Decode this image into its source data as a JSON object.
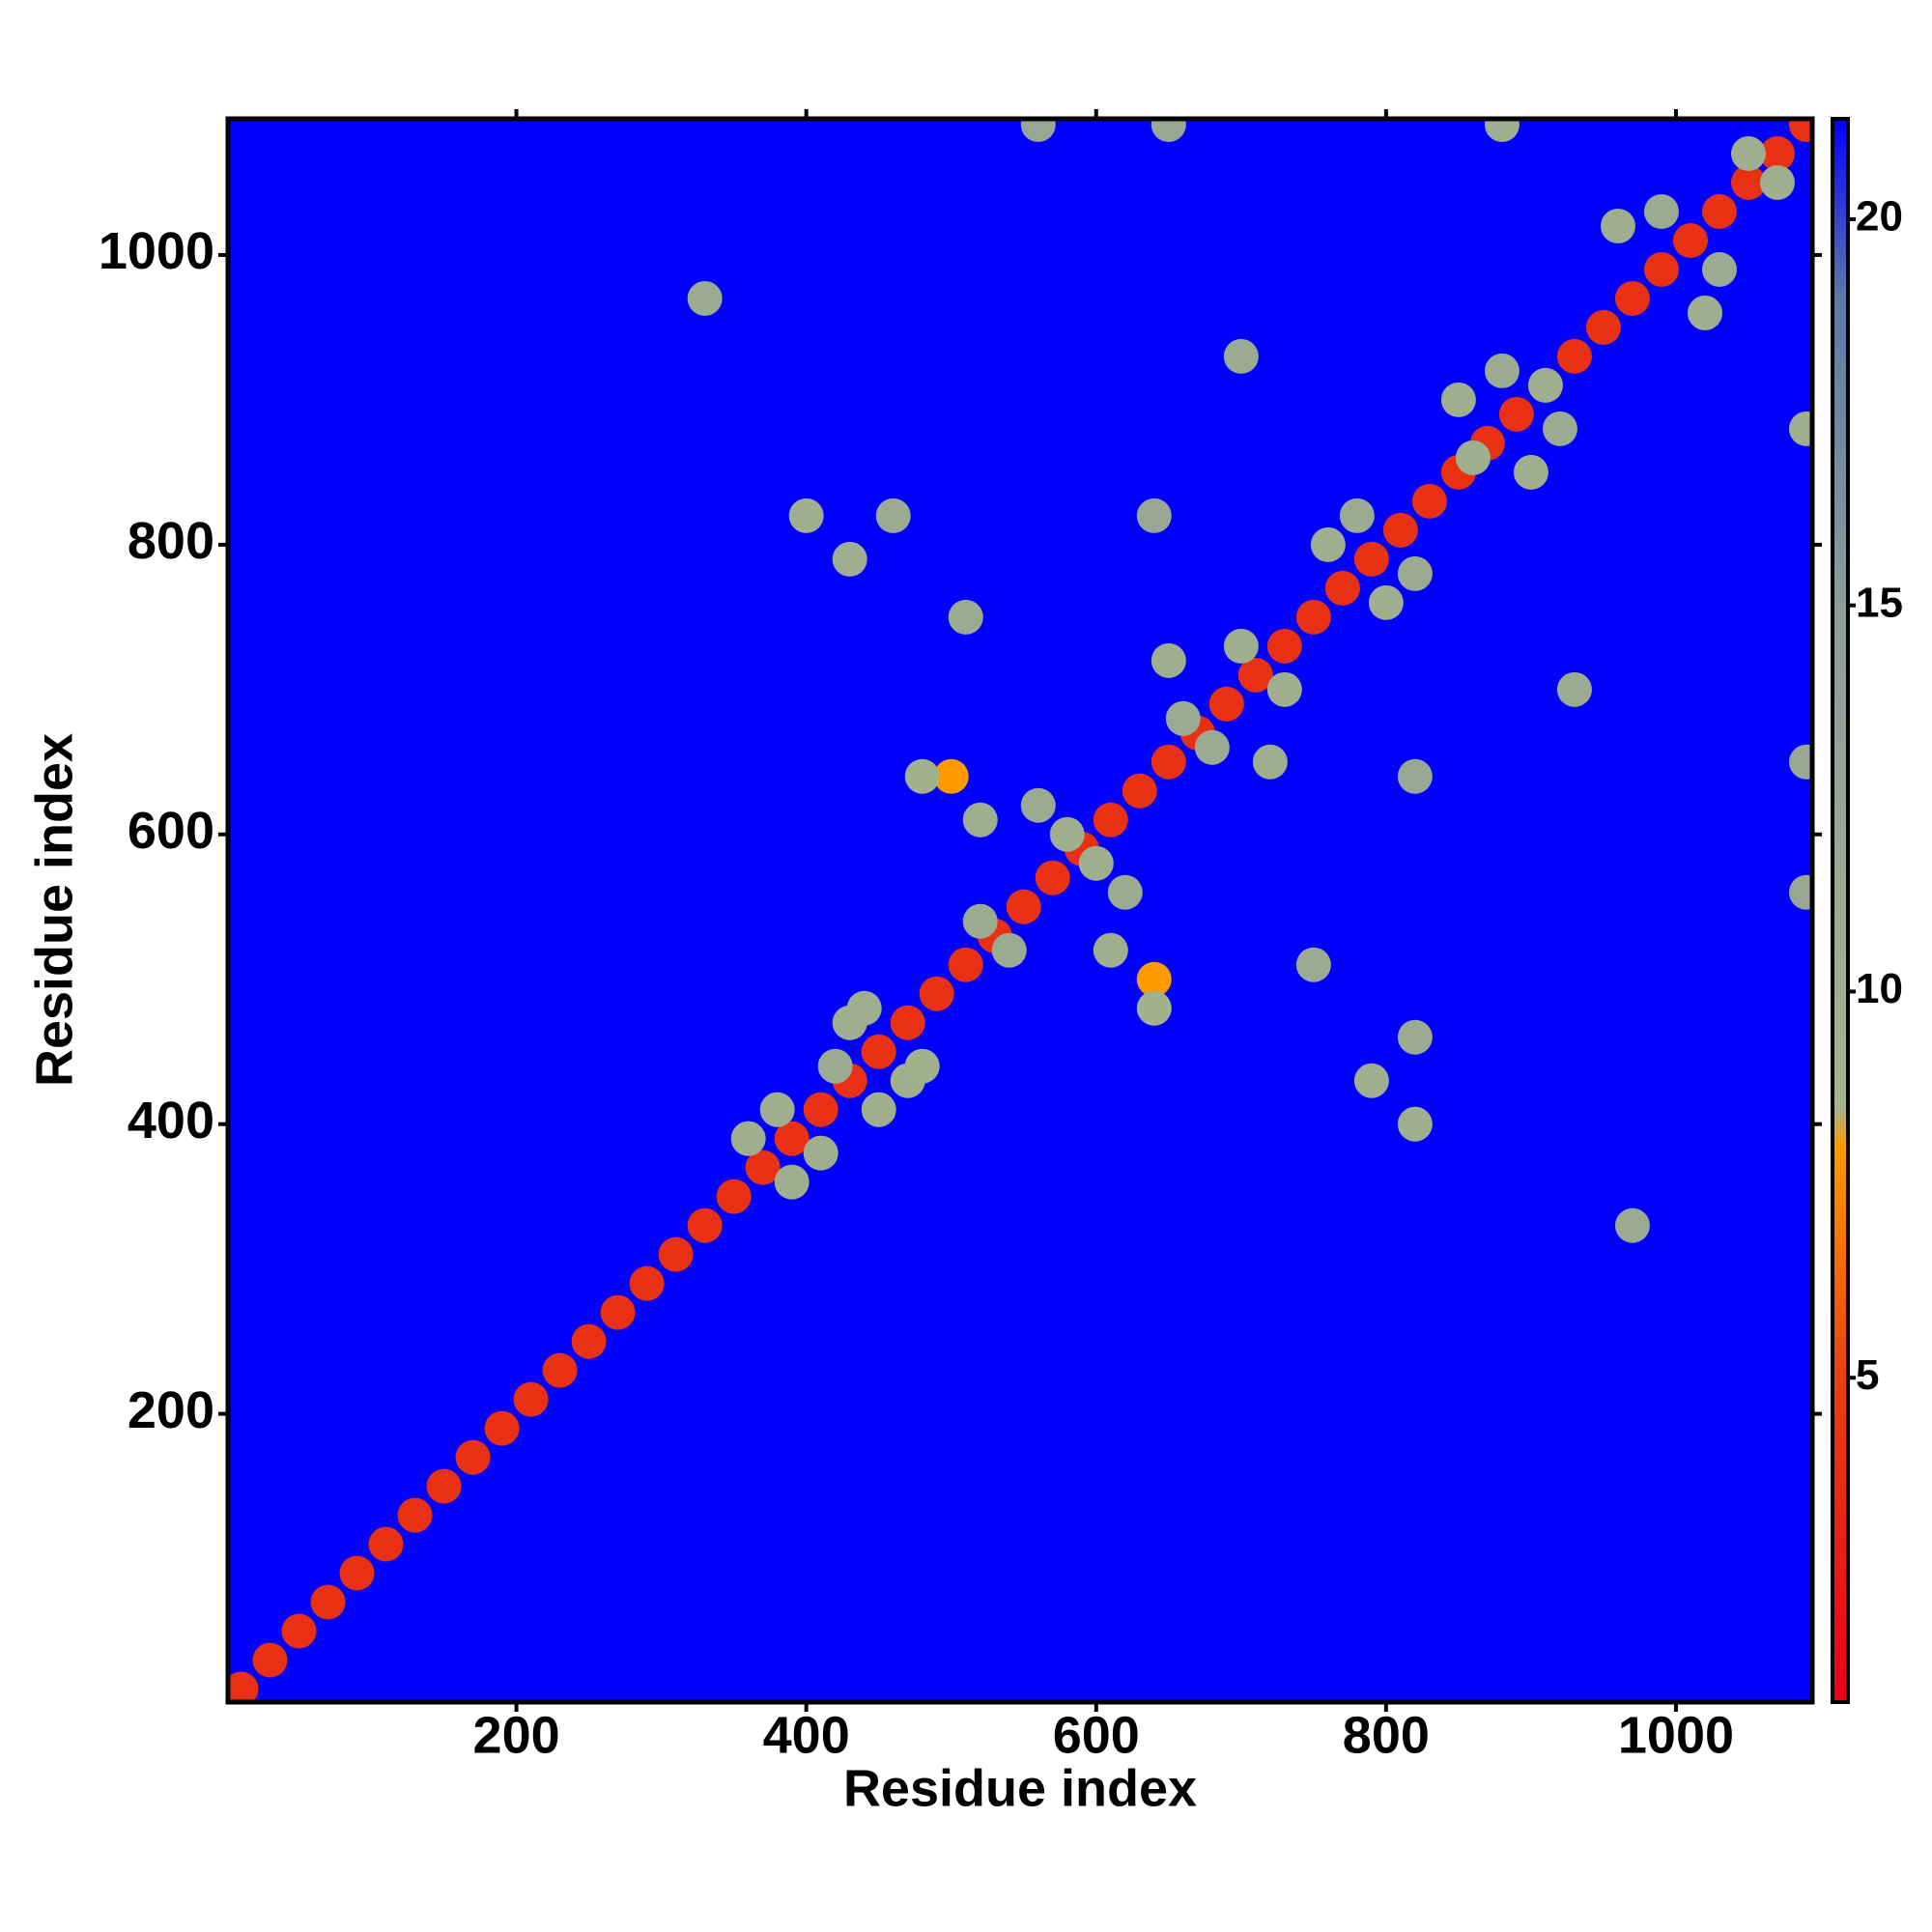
{
  "chart_data": {
    "type": "heatmap",
    "xlabel": "Residue index",
    "ylabel": "Residue index",
    "xlim": [
      1,
      1094
    ],
    "ylim": [
      1,
      1094
    ],
    "xticks": [
      200,
      400,
      600,
      800,
      1000
    ],
    "yticks": [
      200,
      400,
      600,
      800,
      1000
    ],
    "zlim": [
      0.8,
      21.3
    ],
    "zticks": [
      5,
      10,
      15,
      20
    ],
    "colorscale": [
      {
        "value": 0.8,
        "color": "#e8001a"
      },
      {
        "value": 5,
        "color": "#e8400f"
      },
      {
        "value": 8,
        "color": "#ff9900"
      },
      {
        "value": 8.5,
        "color": "#a4b48c"
      },
      {
        "value": 15,
        "color": "#8c9c9a"
      },
      {
        "value": 19,
        "color": "#5a7aa8"
      },
      {
        "value": 21.3,
        "color": "#0000ff"
      }
    ],
    "x": [
      10,
      30,
      50,
      70,
      90,
      110,
      130,
      150,
      170,
      190,
      210,
      230,
      250,
      270,
      290,
      310,
      330,
      350,
      370,
      390,
      410,
      430,
      450,
      470,
      490,
      510,
      530,
      550,
      570,
      590,
      610,
      630,
      650,
      670,
      690,
      710,
      730,
      750,
      770,
      790,
      810,
      830,
      850,
      870,
      890,
      910,
      930,
      950,
      970,
      990,
      1010,
      1030,
      1050,
      1070,
      1090,
      390,
      360,
      410,
      380,
      430,
      470,
      420,
      450,
      480,
      440,
      520,
      610,
      540,
      520,
      600,
      580,
      500,
      640,
      620,
      560,
      650,
      720,
      680,
      660,
      730,
      700,
      760,
      800,
      780,
      820,
      850,
      900,
      880,
      920,
      860,
      910,
      960,
      1020,
      990,
      1030,
      1050,
      1070,
      400,
      820,
      430,
      790,
      460,
      820,
      480,
      640,
      510,
      750,
      640,
      820,
      930,
      700,
      1090,
      560,
      1090,
      650,
      1090,
      880,
      970,
      330
    ],
    "y": [
      10,
      30,
      50,
      70,
      90,
      110,
      130,
      150,
      170,
      190,
      210,
      230,
      250,
      270,
      290,
      310,
      330,
      350,
      370,
      390,
      410,
      430,
      450,
      470,
      490,
      510,
      530,
      550,
      570,
      590,
      610,
      630,
      650,
      670,
      690,
      710,
      730,
      750,
      770,
      790,
      810,
      830,
      850,
      870,
      890,
      910,
      930,
      950,
      970,
      990,
      1010,
      1030,
      1050,
      1070,
      1090,
      360,
      390,
      380,
      410,
      470,
      430,
      440,
      410,
      440,
      480,
      610,
      520,
      520,
      540,
      580,
      600,
      640,
      500,
      560,
      620,
      720,
      650,
      660,
      680,
      700,
      730,
      800,
      760,
      820,
      780,
      900,
      850,
      920,
      880,
      860,
      910,
      1020,
      960,
      1030,
      990,
      1070,
      1050,
      820,
      400,
      790,
      430,
      820,
      460,
      640,
      480,
      750,
      510,
      820,
      640,
      700,
      930,
      560,
      1090,
      650,
      1090,
      880,
      1090,
      330,
      970
    ],
    "values": [
      4,
      4,
      4,
      4,
      4,
      4,
      4,
      4,
      4,
      4,
      4,
      4,
      4,
      4,
      4,
      4,
      4,
      4,
      4,
      4,
      4,
      4,
      4,
      4,
      4,
      4,
      4,
      4,
      4,
      4,
      4,
      4,
      4,
      4,
      4,
      4,
      4,
      4,
      4,
      4,
      4,
      4,
      4,
      4,
      4,
      4,
      4,
      4,
      4,
      4,
      4,
      4,
      4,
      4,
      4,
      10,
      10,
      10,
      10,
      10,
      10,
      11,
      10,
      9,
      10,
      10,
      10,
      11,
      11,
      10,
      10,
      8,
      8,
      11,
      11,
      10,
      10,
      11,
      11,
      10,
      10,
      10,
      10,
      11,
      11,
      10,
      10,
      11,
      11,
      10,
      10,
      10,
      10,
      11,
      11,
      10,
      10,
      10,
      10,
      10,
      10,
      11,
      11,
      9,
      9,
      11,
      11,
      12,
      12,
      11,
      11,
      12,
      12,
      12,
      12,
      10,
      10,
      11,
      11
    ]
  }
}
